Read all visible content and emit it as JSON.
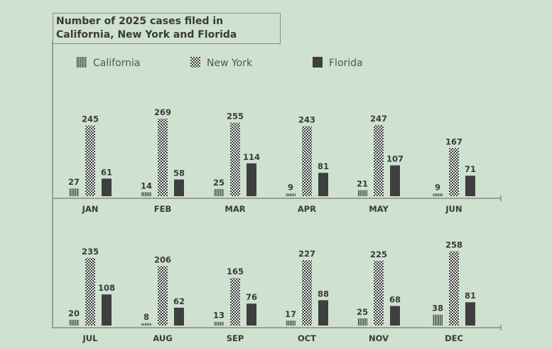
{
  "chart_data": {
    "type": "bar",
    "title": "Number of 2025 cases filed in California, New York and Florida",
    "categories": [
      "JAN",
      "FEB",
      "MAR",
      "APR",
      "MAY",
      "JUN",
      "JUL",
      "AUG",
      "SEP",
      "OCT",
      "NOV",
      "DEC"
    ],
    "series": [
      {
        "name": "California",
        "pattern": "vertical-stripes",
        "values": [
          27,
          14,
          25,
          9,
          21,
          9,
          20,
          8,
          13,
          17,
          25,
          38
        ]
      },
      {
        "name": "New York",
        "pattern": "checkerboard",
        "values": [
          245,
          269,
          255,
          243,
          247,
          167,
          235,
          206,
          165,
          227,
          225,
          258
        ]
      },
      {
        "name": "Florida",
        "pattern": "solid",
        "values": [
          61,
          58,
          114,
          81,
          107,
          71,
          108,
          62,
          76,
          88,
          68,
          81
        ]
      }
    ],
    "legend_position": "top",
    "grid": false,
    "layout_note": "two panels: Jan-Jun and Jul-Dec",
    "colors": {
      "background": "#cee2cf",
      "bars": "#3f3f3f"
    }
  }
}
